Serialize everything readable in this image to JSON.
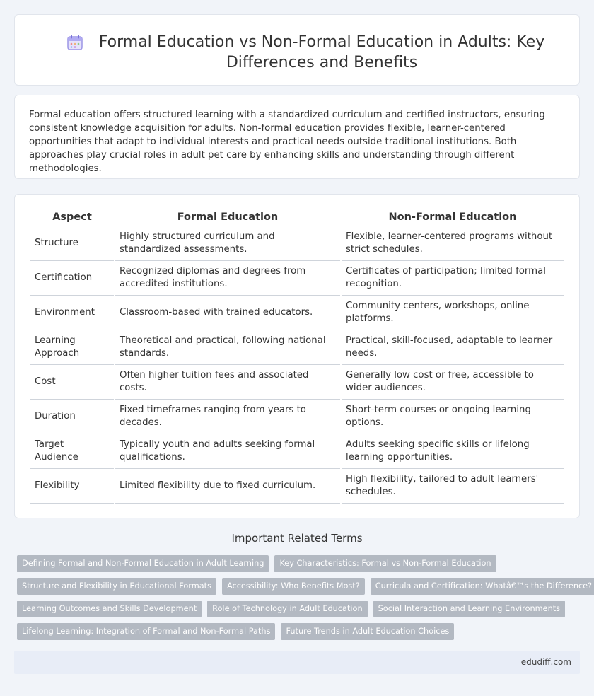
{
  "header": {
    "title_line1": "Formal Education vs Non-Formal Education in Adults: Key",
    "title_line2": "Differences and Benefits"
  },
  "intro": "Formal education offers structured learning with a standardized curriculum and certified instructors, ensuring consistent knowledge acquisition for adults. Non-formal education provides flexible, learner-centered opportunities that adapt to individual interests and practical needs outside traditional institutions. Both approaches play crucial roles in adult pet care by enhancing skills and understanding through different methodologies.",
  "table": {
    "headers": [
      "Aspect",
      "Formal Education",
      "Non-Formal Education"
    ],
    "rows": [
      [
        "Structure",
        "Highly structured curriculum and standardized assessments.",
        "Flexible, learner-centered programs without strict schedules."
      ],
      [
        "Certification",
        "Recognized diplomas and degrees from accredited institutions.",
        "Certificates of participation; limited formal recognition."
      ],
      [
        "Environment",
        "Classroom-based with trained educators.",
        "Community centers, workshops, online platforms."
      ],
      [
        "Learning Approach",
        "Theoretical and practical, following national standards.",
        "Practical, skill-focused, adaptable to learner needs."
      ],
      [
        "Cost",
        "Often higher tuition fees and associated costs.",
        "Generally low cost or free, accessible to wider audiences."
      ],
      [
        "Duration",
        "Fixed timeframes ranging from years to decades.",
        "Short-term courses or ongoing learning options."
      ],
      [
        "Target Audience",
        "Typically youth and adults seeking formal qualifications.",
        "Adults seeking specific skills or lifelong learning opportunities."
      ],
      [
        "Flexibility",
        "Limited flexibility due to fixed curriculum.",
        "High flexibility, tailored to adult learners' schedules."
      ]
    ]
  },
  "related": {
    "title": "Important Related Terms",
    "tags": [
      "Defining Formal and Non-Formal Education in Adult Learning",
      "Key Characteristics: Formal vs Non-Formal Education",
      "Structure and Flexibility in Educational Formats",
      "Accessibility: Who Benefits Most?",
      "Curricula and Certification: Whatâ€™s the Difference?",
      "Learning Outcomes and Skills Development",
      "Role of Technology in Adult Education",
      "Social Interaction and Learning Environments",
      "Lifelong Learning: Integration of Formal and Non-Formal Paths",
      "Future Trends in Adult Education Choices"
    ]
  },
  "footer": {
    "site": "edudiff.com"
  },
  "icons": {
    "title_icon": "calendar-icon"
  },
  "colors": {
    "tag_bg": "#b3b9c2",
    "page_bg": "#f1f4f9",
    "footer_bg": "#e8edf7"
  }
}
